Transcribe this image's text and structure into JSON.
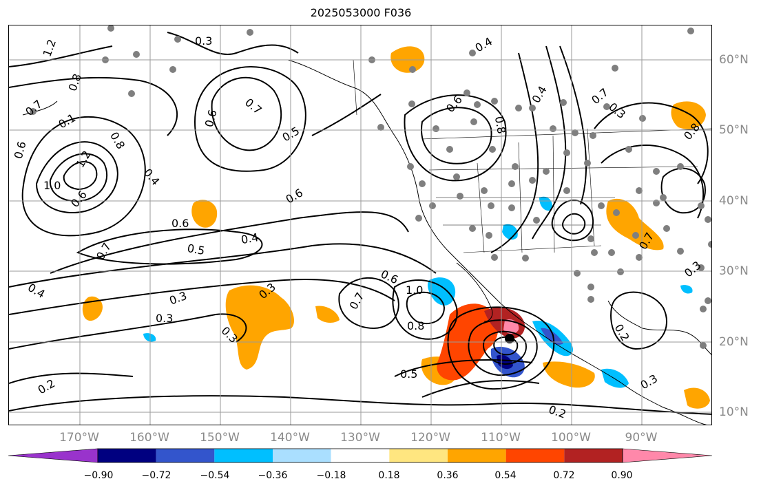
{
  "title": "2025053000 F036",
  "map": {
    "lon_labels": [
      "170°W",
      "160°W",
      "150°W",
      "140°W",
      "130°W",
      "120°W",
      "110°W",
      "100°W",
      "90°W"
    ],
    "lat_labels": [
      "60°N",
      "50°N",
      "40°N",
      "30°N",
      "20°N",
      "10°N"
    ],
    "contour_labels": [
      "0.3",
      "1.2",
      "0.8",
      "0.7",
      "0.1",
      "0.6",
      "0.8",
      "1.2",
      "1.0",
      "0.6",
      "0.4",
      "0.6",
      "0.7",
      "0.5",
      "0.6",
      "0.5",
      "0.4",
      "0.7",
      "0.6",
      "0.4",
      "0.3",
      "0.3",
      "0.3",
      "0.3",
      "0.2",
      "0.6",
      "1.0",
      "0.8",
      "0.7",
      "0.5",
      "0.6",
      "0.8",
      "0.4",
      "0.7",
      "0.3",
      "0.2",
      "0.2",
      "0.8",
      "0.7",
      "0.3",
      "0.3",
      "0.4"
    ]
  },
  "colorbar": {
    "ticks": [
      "−0.90",
      "−0.72",
      "−0.54",
      "−0.36",
      "−0.18",
      "0.18",
      "0.36",
      "0.54",
      "0.72",
      "0.90"
    ],
    "colors": [
      "#9933cc",
      "#000080",
      "#3355cc",
      "#00bfff",
      "#aadfff",
      "#ffffff",
      "#ffe680",
      "#ffa500",
      "#ff4500",
      "#b22222",
      "#ff88aa"
    ]
  }
}
